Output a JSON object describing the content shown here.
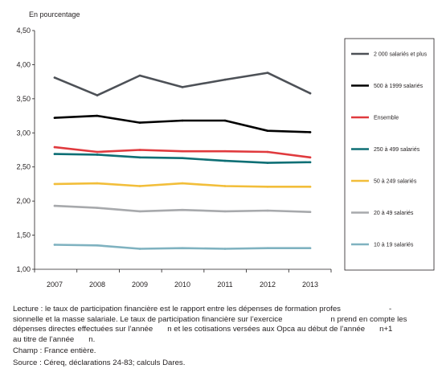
{
  "chart_data": {
    "type": "line",
    "unit_label": "En pourcentage",
    "x": [
      "2007",
      "2008",
      "2009",
      "2010",
      "2011",
      "2012",
      "2013"
    ],
    "ylim": [
      1.0,
      4.5
    ],
    "yticks": [
      "4,50",
      "4,00",
      "3,50",
      "3,00",
      "2,50",
      "2,00",
      "1,50",
      "1,00"
    ],
    "ytick_values": [
      4.5,
      4.0,
      3.5,
      3.0,
      2.5,
      2.0,
      1.5,
      1.0
    ],
    "grid": false,
    "legend_position": "right",
    "series": [
      {
        "name": "2 000 salariés et plus",
        "color": "#4d5157",
        "values": [
          3.81,
          3.55,
          3.84,
          3.67,
          3.78,
          3.88,
          3.58
        ]
      },
      {
        "name": "500 à 1999 salariés",
        "color": "#000000",
        "values": [
          3.22,
          3.25,
          3.15,
          3.18,
          3.18,
          3.03,
          3.01
        ]
      },
      {
        "name": "Ensemble",
        "color": "#e03a3e",
        "values": [
          2.79,
          2.72,
          2.75,
          2.73,
          2.73,
          2.72,
          2.64
        ]
      },
      {
        "name": "250 à 499 salariés",
        "color": "#0e6f75",
        "values": [
          2.69,
          2.68,
          2.64,
          2.63,
          2.59,
          2.56,
          2.57
        ]
      },
      {
        "name": "50 à 249 salariés",
        "color": "#f2be3a",
        "values": [
          2.25,
          2.26,
          2.22,
          2.26,
          2.22,
          2.21,
          2.21
        ]
      },
      {
        "name": "20 à 49 salariés",
        "color": "#a7a9ac",
        "values": [
          1.93,
          1.9,
          1.85,
          1.87,
          1.85,
          1.86,
          1.84
        ]
      },
      {
        "name": "10 à 19 salariés",
        "color": "#7fb2c0",
        "values": [
          1.36,
          1.35,
          1.3,
          1.31,
          1.3,
          1.31,
          1.31
        ]
      }
    ]
  },
  "notes": {
    "lecture_1": "Lecture : le taux de participation financière est le rapport entre les dépenses de formation profes",
    "lecture_1b": "-",
    "lecture_2": "sionnelle et la masse salariale. Le taux de participation financière sur l’exercice",
    "lecture_2b": "n prend en compte les",
    "lecture_3": "dépenses directes effectuées sur l’année",
    "lecture_3b": "n et les cotisations versées aux Opca au début de l’année",
    "lecture_3c": "n+1",
    "lecture_4": "au titre de l’année",
    "lecture_4b": "n.",
    "champ": "Champ : France entière.",
    "source": "Source : Céreq, déclarations 24-83; calculs Dares."
  }
}
